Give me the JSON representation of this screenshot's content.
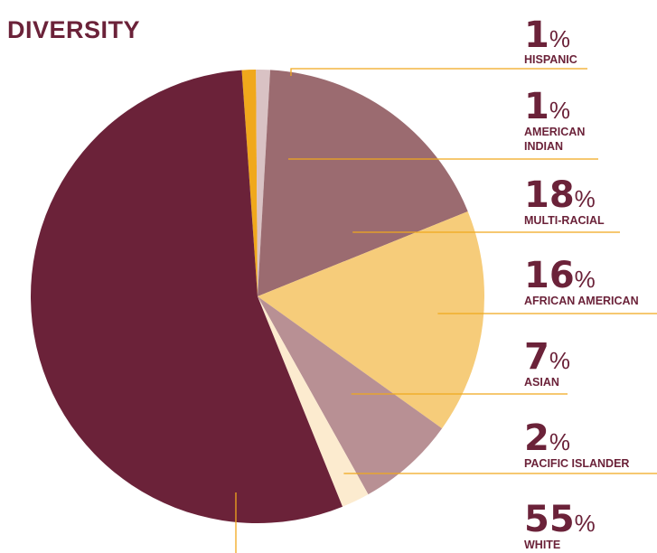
{
  "title": "DIVERSITY",
  "chart_data": {
    "type": "pie",
    "title": "DIVERSITY",
    "slices": [
      {
        "label": "HISPANIC",
        "value": 1,
        "pct_text": "1",
        "color": "#f0a81c"
      },
      {
        "label": "AMERICAN INDIAN",
        "label_lines": [
          "AMERICAN",
          "INDIAN"
        ],
        "value": 1,
        "pct_text": "1",
        "color": "#d9c2c4"
      },
      {
        "label": "MULTI-RACIAL",
        "value": 18,
        "pct_text": "18",
        "color": "#9b6b70"
      },
      {
        "label": "AFRICAN AMERICAN",
        "value": 16,
        "pct_text": "16",
        "color": "#f6cc7a"
      },
      {
        "label": "ASIAN",
        "value": 7,
        "pct_text": "7",
        "color": "#b89094"
      },
      {
        "label": "PACIFIC ISLANDER",
        "value": 2,
        "pct_text": "2",
        "color": "#fcebcf"
      },
      {
        "label": "WHITE",
        "value": 55,
        "pct_text": "55",
        "color": "#6b2239"
      }
    ],
    "percent_symbol": "%"
  },
  "colors": {
    "accent": "#6b2239",
    "leader_line": "#f0a81c"
  }
}
